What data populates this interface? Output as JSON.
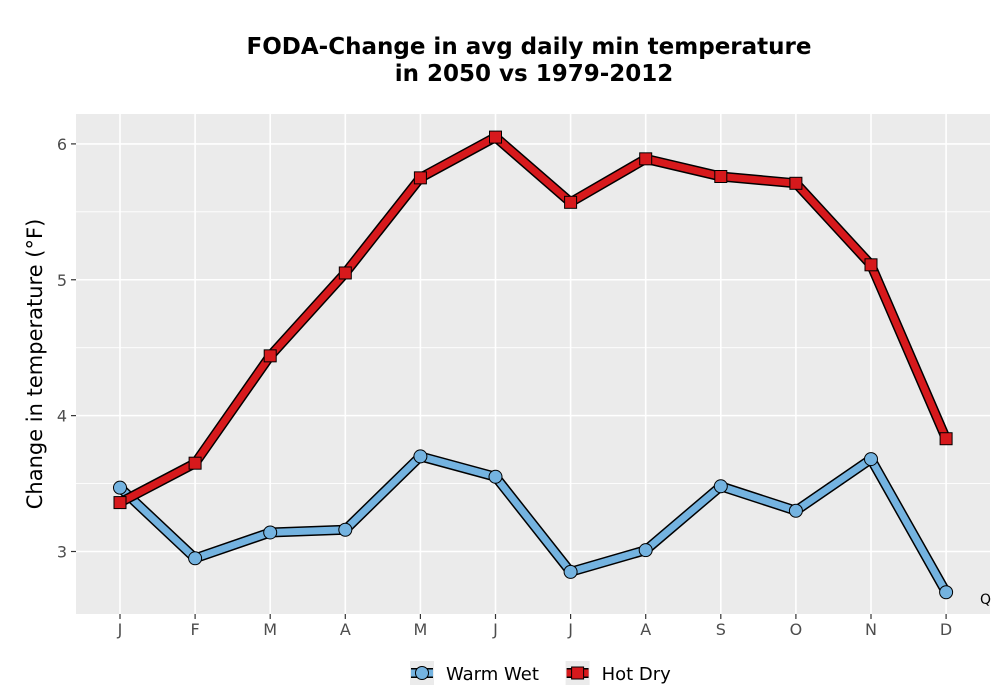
{
  "chart_data": {
    "type": "line",
    "title_line1": "FODA-Change in avg daily min temperature",
    "title_line2": "in 2050 vs 1979-2012",
    "xlabel": "",
    "ylabel": "Change in temperature (°F)",
    "categories": [
      "J",
      "F",
      "M",
      "A",
      "M",
      "J",
      "J",
      "A",
      "S",
      "O",
      "N",
      "D"
    ],
    "yticks": [
      3,
      4,
      5,
      6
    ],
    "ylim": [
      2.54,
      6.22
    ],
    "grid": true,
    "legend_position": "bottom",
    "series": [
      {
        "name": "Warm Wet",
        "values": [
          3.47,
          2.95,
          3.14,
          3.16,
          3.7,
          3.55,
          2.85,
          3.01,
          3.48,
          3.3,
          3.68,
          2.7
        ],
        "color": "#74b3e0",
        "marker": "circle"
      },
      {
        "name": "Hot Dry",
        "values": [
          3.36,
          3.65,
          4.44,
          5.05,
          5.75,
          6.05,
          5.57,
          5.89,
          5.76,
          5.71,
          5.11,
          3.83
        ],
        "color": "#d7191c",
        "marker": "square"
      }
    ],
    "corner_note": "Q"
  }
}
